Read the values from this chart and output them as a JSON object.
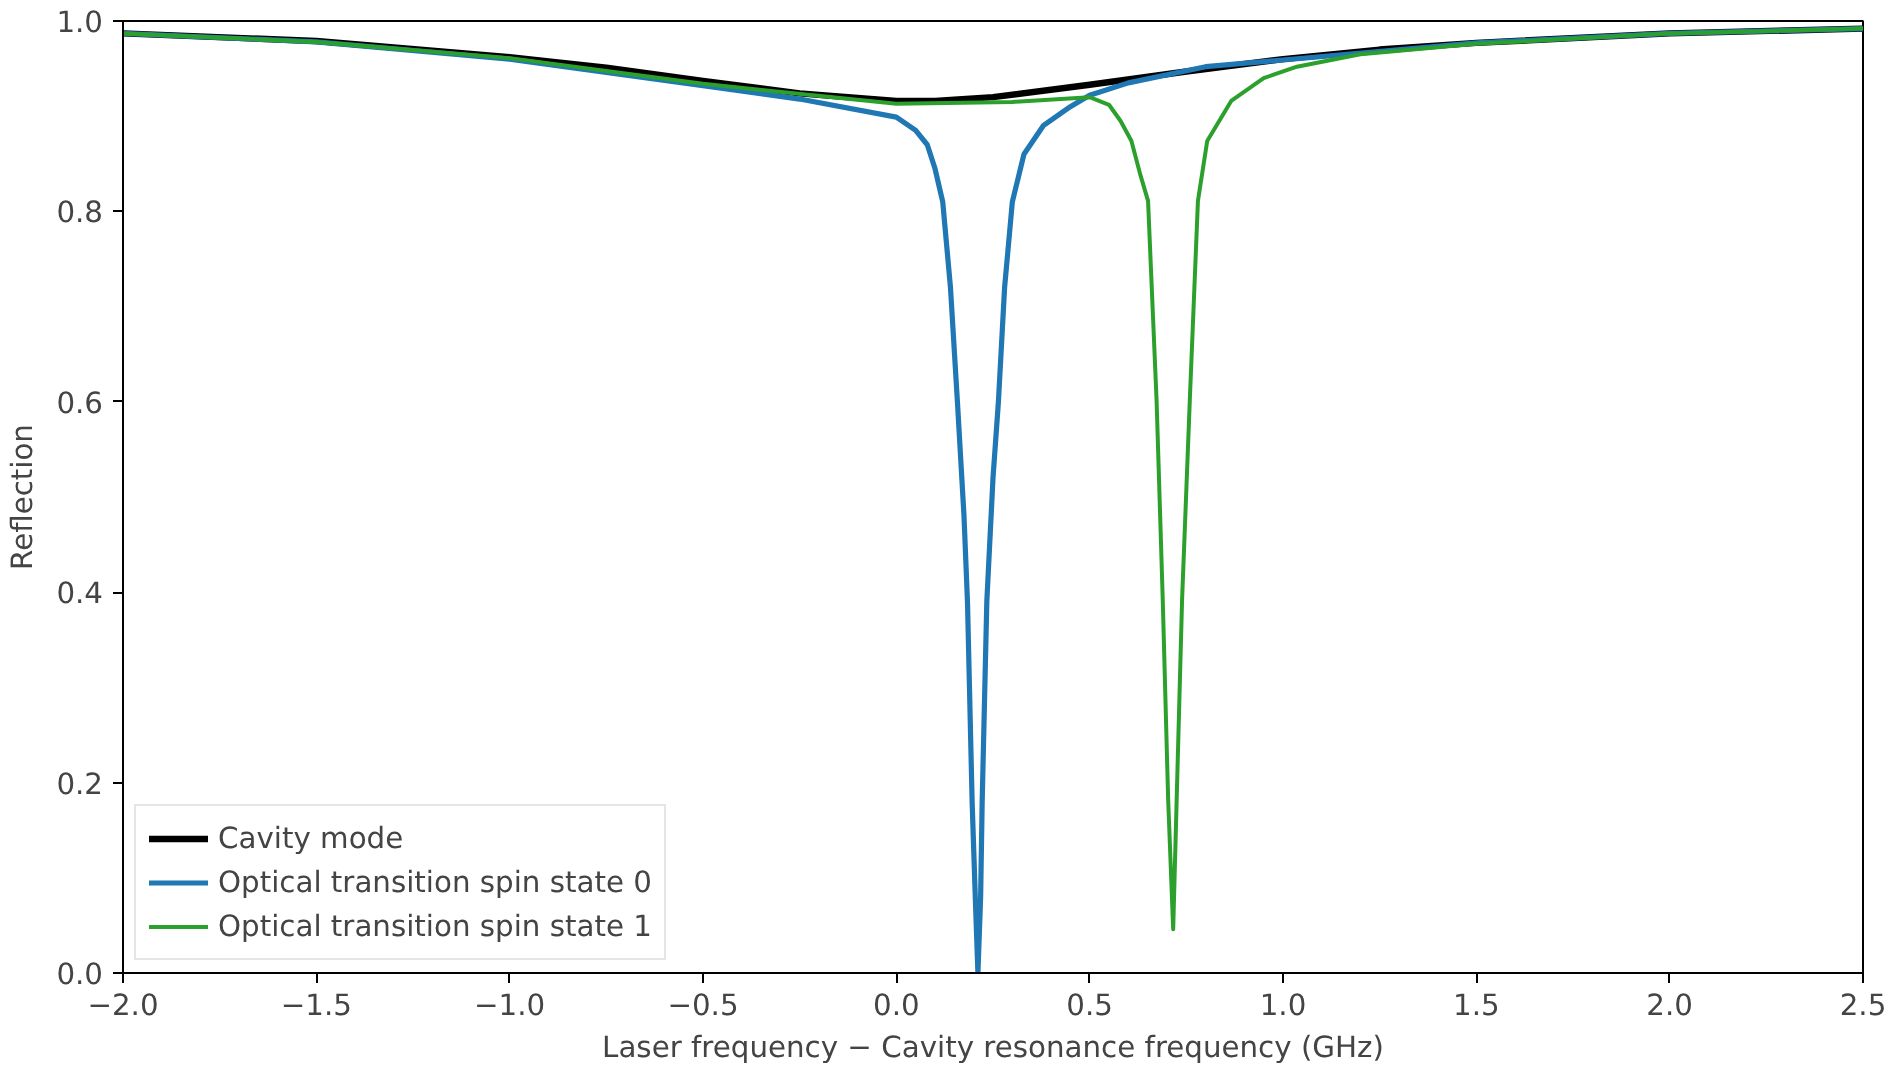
{
  "chart_data": {
    "type": "line",
    "xlabel": "Laser frequency − Cavity resonance frequency (GHz)",
    "ylabel": "Reflection",
    "xlim": [
      -2.0,
      2.5
    ],
    "ylim": [
      0.0,
      1.0
    ],
    "xticks": [
      {
        "value": -2.0,
        "label": "−2.0"
      },
      {
        "value": -1.5,
        "label": "−1.5"
      },
      {
        "value": -1.0,
        "label": "−1.0"
      },
      {
        "value": -0.5,
        "label": "−0.5"
      },
      {
        "value": 0.0,
        "label": "0.0"
      },
      {
        "value": 0.5,
        "label": "0.5"
      },
      {
        "value": 1.0,
        "label": "1.0"
      },
      {
        "value": 1.5,
        "label": "1.5"
      },
      {
        "value": 2.0,
        "label": "2.0"
      },
      {
        "value": 2.5,
        "label": "2.5"
      }
    ],
    "yticks": [
      {
        "value": 0.0,
        "label": "0.0"
      },
      {
        "value": 0.2,
        "label": "0.2"
      },
      {
        "value": 0.4,
        "label": "0.4"
      },
      {
        "value": 0.6,
        "label": "0.6"
      },
      {
        "value": 0.8,
        "label": "0.8"
      },
      {
        "value": 1.0,
        "label": "1.0"
      }
    ],
    "grid": false,
    "legend": "bottom left",
    "marker": "none",
    "line_style": "solid",
    "series": [
      {
        "name": "Cavity mode",
        "color": "#000000",
        "x": [
          -2.0,
          -1.5,
          -1.0,
          -0.75,
          -0.5,
          -0.25,
          0.0,
          0.1,
          0.25,
          0.5,
          0.75,
          1.0,
          1.25,
          1.5,
          2.0,
          2.5
        ],
        "values": [
          0.987,
          0.979,
          0.962,
          0.951,
          0.937,
          0.924,
          0.916,
          0.916,
          0.92,
          0.933,
          0.947,
          0.96,
          0.97,
          0.977,
          0.987,
          0.992
        ]
      },
      {
        "name": "Optical transition spin state 0",
        "color": "#1f77b4",
        "x": [
          -2.0,
          -1.5,
          -1.0,
          -0.5,
          -0.25,
          0.0,
          0.05,
          0.08,
          0.1,
          0.12,
          0.14,
          0.158,
          0.175,
          0.184,
          0.196,
          0.205,
          0.211,
          0.218,
          0.222,
          0.234,
          0.25,
          0.264,
          0.28,
          0.3,
          0.33,
          0.38,
          0.45,
          0.5,
          0.6,
          0.8,
          1.0,
          1.5,
          2.0,
          2.5
        ],
        "values": [
          0.987,
          0.978,
          0.96,
          0.932,
          0.918,
          0.899,
          0.885,
          0.87,
          0.845,
          0.81,
          0.72,
          0.6,
          0.48,
          0.39,
          0.18,
          0.07,
          0.0,
          0.08,
          0.18,
          0.39,
          0.52,
          0.6,
          0.72,
          0.81,
          0.86,
          0.89,
          0.91,
          0.922,
          0.935,
          0.952,
          0.959,
          0.977,
          0.987,
          0.992
        ]
      },
      {
        "name": "Optical transition spin state 1",
        "color": "#2ca02c",
        "x": [
          -2.0,
          -1.5,
          -1.0,
          -0.5,
          0.0,
          0.3,
          0.5,
          0.55,
          0.58,
          0.608,
          0.63,
          0.651,
          0.673,
          0.689,
          0.703,
          0.716,
          0.725,
          0.739,
          0.759,
          0.78,
          0.804,
          0.866,
          0.95,
          1.036,
          1.2,
          1.5,
          2.0,
          2.5
        ],
        "values": [
          0.987,
          0.978,
          0.961,
          0.934,
          0.913,
          0.915,
          0.92,
          0.912,
          0.895,
          0.874,
          0.84,
          0.811,
          0.602,
          0.392,
          0.182,
          0.046,
          0.182,
          0.392,
          0.602,
          0.811,
          0.874,
          0.916,
          0.94,
          0.952,
          0.965,
          0.976,
          0.987,
          0.992
        ]
      }
    ]
  }
}
